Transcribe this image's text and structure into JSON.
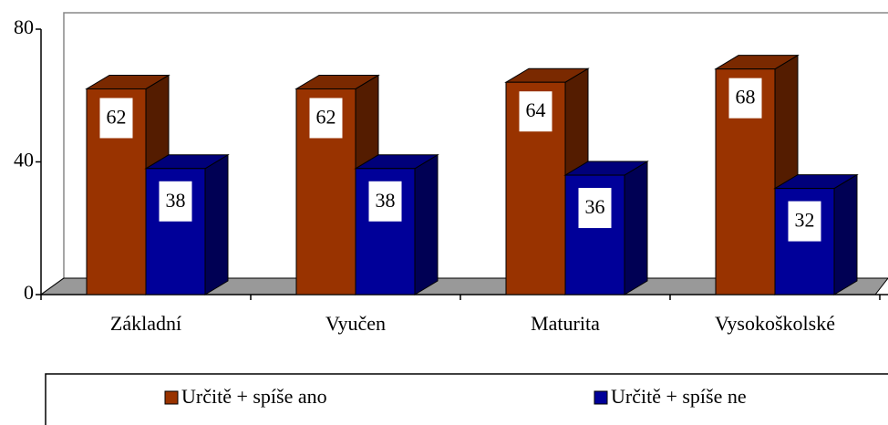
{
  "chart_data": {
    "type": "bar",
    "categories": [
      "Základní",
      "Vyučen",
      "Maturita",
      "Vysokoškolské"
    ],
    "series": [
      {
        "name": "Určitě + spíše ano",
        "color": "#993300",
        "values": [
          62,
          62,
          64,
          68
        ]
      },
      {
        "name": "Určitě + spíše ne",
        "color": "#000099",
        "values": [
          38,
          38,
          36,
          32
        ]
      }
    ],
    "ylim": [
      0,
      80
    ],
    "yticks": [
      0,
      40,
      80
    ]
  }
}
